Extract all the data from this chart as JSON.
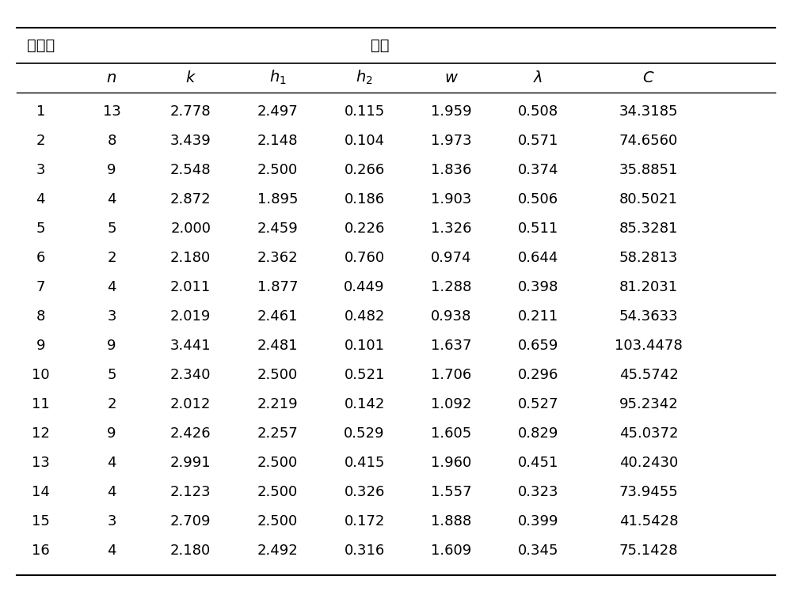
{
  "title": "试验号",
  "group_header": "结果",
  "col_headers": [
    "",
    "n",
    "k",
    "h₁",
    "h₂",
    "w",
    "λ",
    "C"
  ],
  "rows": [
    [
      1,
      13,
      "2.778",
      "2.497",
      "0.115",
      "1.959",
      "0.508",
      "34.3185"
    ],
    [
      2,
      8,
      "3.439",
      "2.148",
      "0.104",
      "1.973",
      "0.571",
      "74.6560"
    ],
    [
      3,
      9,
      "2.548",
      "2.500",
      "0.266",
      "1.836",
      "0.374",
      "35.8851"
    ],
    [
      4,
      4,
      "2.872",
      "1.895",
      "0.186",
      "1.903",
      "0.506",
      "80.5021"
    ],
    [
      5,
      5,
      "2.000",
      "2.459",
      "0.226",
      "1.326",
      "0.511",
      "85.3281"
    ],
    [
      6,
      2,
      "2.180",
      "2.362",
      "0.760",
      "0.974",
      "0.644",
      "58.2813"
    ],
    [
      7,
      4,
      "2.011",
      "1.877",
      "0.449",
      "1.288",
      "0.398",
      "81.2031"
    ],
    [
      8,
      3,
      "2.019",
      "2.461",
      "0.482",
      "0.938",
      "0.211",
      "54.3633"
    ],
    [
      9,
      9,
      "3.441",
      "2.481",
      "0.101",
      "1.637",
      "0.659",
      "103.4478"
    ],
    [
      10,
      5,
      "2.340",
      "2.500",
      "0.521",
      "1.706",
      "0.296",
      "45.5742"
    ],
    [
      11,
      2,
      "2.012",
      "2.219",
      "0.142",
      "1.092",
      "0.527",
      "95.2342"
    ],
    [
      12,
      9,
      "2.426",
      "2.257",
      "0.529",
      "1.605",
      "0.829",
      "45.0372"
    ],
    [
      13,
      4,
      "2.991",
      "2.500",
      "0.415",
      "1.960",
      "0.451",
      "40.2430"
    ],
    [
      14,
      4,
      "2.123",
      "2.500",
      "0.326",
      "1.557",
      "0.323",
      "73.9455"
    ],
    [
      15,
      3,
      "2.709",
      "2.500",
      "0.172",
      "1.888",
      "0.399",
      "41.5428"
    ],
    [
      16,
      4,
      "2.180",
      "2.492",
      "0.316",
      "1.609",
      "0.345",
      "75.1428"
    ]
  ],
  "bg_color": "#ffffff",
  "text_color": "#000000",
  "font_size": 13,
  "header_font_size": 14
}
